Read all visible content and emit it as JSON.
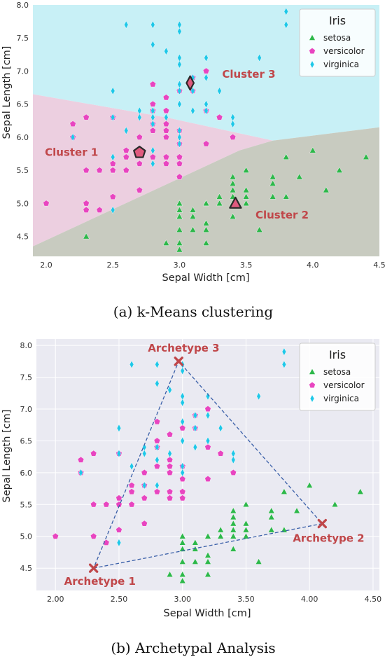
{
  "chart_data": [
    {
      "type": "scatter",
      "panel": "a",
      "caption": "(a) k-Means clustering",
      "xlabel": "Sepal Width [cm]",
      "ylabel": "Sepal Length [cm]",
      "xlim": [
        1.9,
        4.5
      ],
      "ylim": [
        4.2,
        8.0
      ],
      "xticks": [
        "2.0",
        "2.5",
        "3.0",
        "3.5",
        "4.0",
        "4.5"
      ],
      "yticks": [
        "4.5",
        "5.0",
        "5.5",
        "6.0",
        "6.5",
        "7.0",
        "7.5",
        "8.0"
      ],
      "xtick_values": [
        2.0,
        2.5,
        3.0,
        3.5,
        4.0,
        4.5
      ],
      "ytick_values": [
        4.5,
        5.0,
        5.5,
        6.0,
        6.5,
        7.0,
        7.5,
        8.0
      ],
      "grid": false,
      "legend": {
        "title": "Iris",
        "position": "top-right"
      },
      "regions": [
        {
          "cluster": "Cluster 3",
          "color": "#c8f0f6",
          "polygon": [
            [
              1.9,
              6.65
            ],
            [
              2.9,
              6.3
            ],
            [
              3.7,
              5.95
            ],
            [
              4.5,
              6.15
            ],
            [
              4.5,
              8.0
            ],
            [
              1.9,
              8.0
            ]
          ]
        },
        {
          "cluster": "Cluster 1",
          "color": "#eccfe0",
          "polygon": [
            [
              1.9,
              6.65
            ],
            [
              2.9,
              6.3
            ],
            [
              3.7,
              5.95
            ],
            [
              3.45,
              5.8
            ],
            [
              1.9,
              4.35
            ]
          ]
        },
        {
          "cluster": "Cluster 2",
          "color": "#c8cbc0",
          "polygon": [
            [
              1.9,
              4.35
            ],
            [
              3.45,
              5.8
            ],
            [
              3.7,
              5.95
            ],
            [
              4.5,
              6.15
            ],
            [
              4.5,
              4.2
            ],
            [
              1.9,
              4.2
            ]
          ]
        }
      ],
      "centroids": [
        {
          "label": "Cluster 1",
          "x": 2.7,
          "y": 5.77,
          "marker": "pentagon",
          "color": "#e05a7e"
        },
        {
          "label": "Cluster 2",
          "x": 3.42,
          "y": 5.0,
          "marker": "triangle",
          "color": "#e05a7e"
        },
        {
          "label": "Cluster 3",
          "x": 3.08,
          "y": 6.82,
          "marker": "diamond",
          "color": "#e05a7e"
        }
      ],
      "annotations": [
        {
          "text": "Cluster 3",
          "x": 3.32,
          "y": 6.9
        },
        {
          "text": "Cluster 1",
          "x": 1.99,
          "y": 5.72
        },
        {
          "text": "Cluster 2",
          "x": 3.57,
          "y": 4.77
        }
      ],
      "series": [
        {
          "name": "setosa",
          "marker": "triangle",
          "color": "#2db84a",
          "x": [
            2.3,
            2.9,
            3.0,
            3.0,
            3.0,
            3.0,
            3.0,
            3.0,
            3.0,
            3.0,
            3.0,
            3.0,
            3.1,
            3.1,
            3.1,
            3.2,
            3.2,
            3.2,
            3.2,
            3.2,
            3.2,
            3.3,
            3.3,
            3.4,
            3.4,
            3.4,
            3.4,
            3.4,
            3.4,
            3.4,
            3.4,
            3.5,
            3.5,
            3.5,
            3.5,
            3.5,
            3.6,
            3.7,
            3.7,
            3.7,
            3.8,
            3.8,
            3.8,
            3.8,
            3.9,
            4.0,
            4.1,
            4.2,
            4.4
          ],
          "y": [
            4.5,
            4.4,
            4.3,
            4.4,
            4.8,
            4.9,
            5.0,
            4.8,
            5.0,
            4.9,
            4.6,
            4.8,
            4.9,
            4.8,
            4.6,
            4.4,
            4.7,
            4.6,
            5.0,
            4.7,
            5.0,
            5.0,
            5.1,
            5.4,
            5.2,
            5.0,
            4.8,
            5.1,
            5.0,
            5.3,
            4.8,
            5.1,
            5.5,
            5.0,
            5.2,
            5.1,
            4.6,
            5.4,
            5.3,
            5.1,
            5.7,
            5.1,
            5.1,
            5.7,
            5.4,
            5.8,
            5.2,
            5.5,
            5.7
          ]
        },
        {
          "name": "versicolor",
          "marker": "pentagon",
          "color": "#e845c0",
          "x": [
            2.0,
            2.2,
            2.2,
            2.3,
            2.3,
            2.3,
            2.3,
            2.4,
            2.4,
            2.5,
            2.5,
            2.5,
            2.5,
            2.5,
            2.6,
            2.6,
            2.6,
            2.7,
            2.7,
            2.7,
            2.7,
            2.7,
            2.8,
            2.8,
            2.8,
            2.8,
            2.8,
            2.8,
            2.9,
            2.9,
            2.9,
            2.9,
            2.9,
            2.9,
            2.9,
            3.0,
            3.0,
            3.0,
            3.0,
            3.0,
            3.0,
            3.1,
            3.1,
            3.1,
            3.2,
            3.2,
            3.2,
            3.3,
            3.4
          ],
          "y": [
            5.0,
            6.2,
            6.0,
            5.5,
            6.3,
            5.0,
            4.9,
            5.5,
            4.9,
            5.6,
            5.1,
            5.5,
            6.3,
            5.5,
            5.8,
            5.5,
            5.7,
            5.8,
            6.0,
            5.6,
            5.2,
            5.6,
            6.1,
            6.5,
            6.8,
            5.7,
            6.2,
            6.4,
            6.6,
            6.1,
            6.0,
            5.7,
            6.2,
            5.6,
            6.4,
            5.9,
            6.7,
            5.6,
            5.7,
            6.1,
            5.4,
            6.7,
            6.9,
            6.7,
            7.0,
            5.9,
            6.4,
            6.3,
            6.0
          ]
        },
        {
          "name": "virginica",
          "marker": "diamond",
          "color": "#1ec8e8",
          "x": [
            2.2,
            2.5,
            2.5,
            2.5,
            2.5,
            2.6,
            2.6,
            2.7,
            2.7,
            2.7,
            2.8,
            2.8,
            2.8,
            2.8,
            2.8,
            2.8,
            2.8,
            2.9,
            2.9,
            3.0,
            3.0,
            3.0,
            3.0,
            3.0,
            3.0,
            3.0,
            3.0,
            3.0,
            3.0,
            3.0,
            3.0,
            3.1,
            3.1,
            3.1,
            3.2,
            3.2,
            3.2,
            3.2,
            3.3,
            3.4,
            3.4,
            3.6,
            3.8,
            3.8
          ],
          "y": [
            6.0,
            6.3,
            6.7,
            4.9,
            5.7,
            6.1,
            7.7,
            6.4,
            5.8,
            6.3,
            6.4,
            6.2,
            7.4,
            7.7,
            5.8,
            6.3,
            5.6,
            6.3,
            7.3,
            6.5,
            7.6,
            7.7,
            7.2,
            6.8,
            7.1,
            6.5,
            6.7,
            6.1,
            5.9,
            6.0,
            6.5,
            6.9,
            6.4,
            6.7,
            7.2,
            6.4,
            6.5,
            6.9,
            6.7,
            6.3,
            6.2,
            7.2,
            7.7,
            7.9
          ]
        }
      ]
    },
    {
      "type": "scatter",
      "panel": "b",
      "caption": "(b) Archetypal Analysis",
      "xlabel": "Sepal Width [cm]",
      "ylabel": "Sepal Length [cm]",
      "xlim": [
        1.85,
        4.55
      ],
      "ylim": [
        4.15,
        8.1
      ],
      "xticks": [
        "2.00",
        "2.50",
        "3.00",
        "3.50",
        "4.00",
        "4.50"
      ],
      "yticks": [
        "4.5",
        "5.0",
        "5.5",
        "6.0",
        "6.5",
        "7.0",
        "7.5",
        "8.0"
      ],
      "xtick_values": [
        2.0,
        2.5,
        3.0,
        3.5,
        4.0,
        4.5
      ],
      "ytick_values": [
        4.5,
        5.0,
        5.5,
        6.0,
        6.5,
        7.0,
        7.5,
        8.0
      ],
      "grid": true,
      "legend": {
        "title": "Iris",
        "position": "top-right"
      },
      "archetypes": [
        {
          "label": "Archetype 1",
          "x": 2.3,
          "y": 4.5
        },
        {
          "label": "Archetype 2",
          "x": 4.1,
          "y": 5.2
        },
        {
          "label": "Archetype 3",
          "x": 2.97,
          "y": 7.75
        }
      ],
      "hull_color": "#3a5fa8",
      "archetype_color": "#c0474a",
      "series": [
        {
          "name": "setosa",
          "marker": "triangle",
          "color": "#2db84a",
          "x": [
            2.9,
            3.0,
            3.0,
            3.0,
            3.0,
            3.0,
            3.0,
            3.0,
            3.0,
            3.1,
            3.1,
            3.1,
            3.2,
            3.2,
            3.2,
            3.2,
            3.2,
            3.3,
            3.3,
            3.4,
            3.4,
            3.4,
            3.4,
            3.4,
            3.4,
            3.5,
            3.5,
            3.5,
            3.5,
            3.6,
            3.7,
            3.7,
            3.7,
            3.8,
            3.8,
            3.8,
            3.9,
            4.0,
            4.2,
            4.4
          ],
          "y": [
            4.4,
            4.3,
            4.4,
            4.8,
            4.9,
            5.0,
            4.8,
            4.6,
            4.9,
            4.9,
            4.8,
            4.6,
            4.4,
            4.7,
            4.6,
            5.0,
            4.7,
            5.0,
            5.1,
            5.4,
            5.2,
            5.0,
            4.8,
            5.1,
            5.3,
            5.1,
            5.5,
            5.0,
            5.2,
            4.6,
            5.4,
            5.3,
            5.1,
            5.7,
            5.1,
            5.1,
            5.4,
            5.8,
            5.5,
            5.7
          ]
        },
        {
          "name": "versicolor",
          "marker": "pentagon",
          "color": "#e845c0",
          "x": [
            2.0,
            2.2,
            2.2,
            2.3,
            2.3,
            2.3,
            2.4,
            2.4,
            2.5,
            2.5,
            2.5,
            2.5,
            2.6,
            2.6,
            2.6,
            2.7,
            2.7,
            2.7,
            2.7,
            2.8,
            2.8,
            2.8,
            2.8,
            2.8,
            2.9,
            2.9,
            2.9,
            2.9,
            2.9,
            2.9,
            3.0,
            3.0,
            3.0,
            3.0,
            3.0,
            3.1,
            3.1,
            3.1,
            3.2,
            3.2,
            3.2,
            3.3,
            3.4
          ],
          "y": [
            5.0,
            6.2,
            6.0,
            5.5,
            6.3,
            5.0,
            5.5,
            4.9,
            5.6,
            5.1,
            5.5,
            6.3,
            5.8,
            5.5,
            5.7,
            5.8,
            6.0,
            5.6,
            5.2,
            6.1,
            6.5,
            6.8,
            5.7,
            6.4,
            6.6,
            6.1,
            6.0,
            5.7,
            6.2,
            5.6,
            5.9,
            6.7,
            5.6,
            5.7,
            6.1,
            6.7,
            6.9,
            6.7,
            7.0,
            5.9,
            6.4,
            6.3,
            6.0
          ]
        },
        {
          "name": "virginica",
          "marker": "diamond",
          "color": "#1ec8e8",
          "x": [
            2.2,
            2.5,
            2.5,
            2.5,
            2.6,
            2.6,
            2.7,
            2.7,
            2.7,
            2.8,
            2.8,
            2.8,
            2.8,
            2.8,
            2.9,
            2.9,
            3.0,
            3.0,
            3.0,
            3.0,
            3.0,
            3.0,
            3.0,
            3.0,
            3.0,
            3.1,
            3.1,
            3.1,
            3.2,
            3.2,
            3.2,
            3.3,
            3.4,
            3.4,
            3.6,
            3.8,
            3.8
          ],
          "y": [
            6.0,
            6.3,
            6.7,
            4.9,
            6.1,
            7.7,
            6.4,
            5.8,
            6.3,
            6.4,
            6.2,
            7.4,
            7.7,
            5.8,
            6.3,
            7.3,
            6.5,
            7.6,
            7.7,
            7.2,
            6.8,
            7.1,
            6.5,
            6.1,
            6.0,
            6.9,
            6.4,
            6.7,
            7.2,
            6.5,
            6.9,
            6.7,
            6.3,
            6.2,
            7.2,
            7.7,
            7.9
          ]
        }
      ]
    }
  ]
}
